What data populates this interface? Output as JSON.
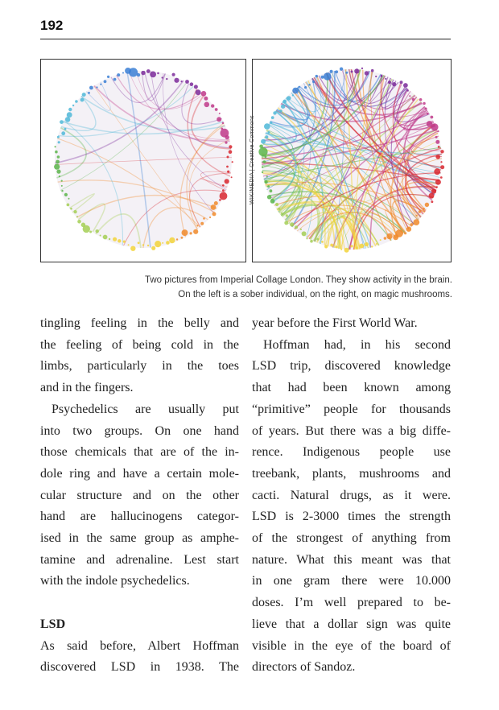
{
  "header": {
    "page_number": "192"
  },
  "figure": {
    "credit": "WIKIMEDIA | Creative Commons",
    "caption_lines": [
      "Two pictures from Imperial Collage London. They show activity in the brain.",
      "On the left is a sober individual, on the right, on magic mushrooms."
    ],
    "colors": {
      "purple": "#7b2a9a",
      "blue": "#3a7fd5",
      "cyan": "#4fb8d8",
      "green": "#5ab54a",
      "lightgreen": "#a5cf55",
      "yellow": "#f2d43a",
      "orange": "#f08a2a",
      "red": "#d8262e",
      "magenta": "#c03a8a"
    }
  },
  "left_column": {
    "lines": [
      "tingling feeling in the belly and",
      "the feeling of being cold in the",
      "limbs, particularly in the toes",
      "and in the fingers.",
      "Psychedelics are usually put",
      "into two groups. On one hand",
      "those chemicals that are of the in-",
      "dole ring and have a certain mole-",
      "cular structure and on the other",
      "hand are hallucinogens categor-",
      "ised in the same group as amphe-",
      "tamine and adrenaline. Lest start",
      "with the indole psychedelics."
    ],
    "heading": "LSD",
    "after_heading_lines": [
      "As said before, Albert Hoffman",
      "discovered LSD in 1938. The"
    ]
  },
  "right_column": {
    "lines": [
      "year before the First World War.",
      "Hoffman had, in his second",
      "LSD trip, discovered knowledge",
      "that had been known among",
      "“primitive” people for thousands",
      "of years. But there was a big diffe-",
      "rence. Indigenous people use",
      "treebank, plants, mushrooms and",
      "cacti. Natural drugs, as it were.",
      "LSD is 2-3000 times the strength",
      "of the strongest of anything from",
      "nature. What this meant was that",
      "in one gram there were 10.000",
      "doses. I’m well prepared to be-",
      "lieve that a dollar sign was quite",
      "visible in the eye of the board of",
      "directors of Sandoz."
    ]
  }
}
